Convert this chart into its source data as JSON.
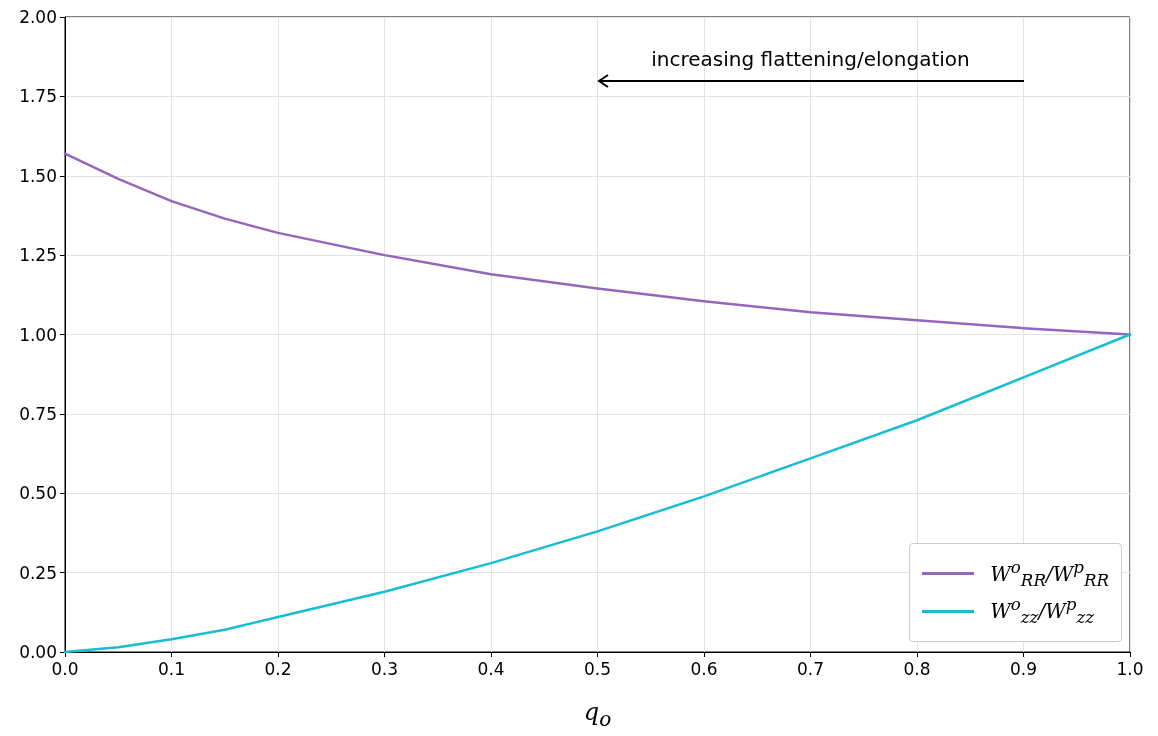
{
  "chart_data": {
    "type": "line",
    "xlabel": "q$_{o}$",
    "x": [
      0,
      0.05,
      0.1,
      0.15,
      0.2,
      0.3,
      0.4,
      0.5,
      0.6,
      0.7,
      0.8,
      0.9,
      1.0
    ],
    "series": [
      {
        "name": "W$^{o}$$_{RR}$/W$^{p}$$_{RR}$",
        "color": "#9467bd",
        "values": [
          1.57,
          1.49,
          1.42,
          1.365,
          1.32,
          1.25,
          1.19,
          1.145,
          1.105,
          1.07,
          1.045,
          1.02,
          1.0
        ]
      },
      {
        "name": "W$^{o}$$_{zz}$/W$^{p}$$_{zz}$",
        "color": "#17becf",
        "values": [
          0,
          0.015,
          0.04,
          0.07,
          0.11,
          0.19,
          0.28,
          0.38,
          0.49,
          0.61,
          0.73,
          0.865,
          1.0
        ]
      }
    ],
    "xlim": [
      0,
      1
    ],
    "xticks": [
      {
        "value": 0,
        "label": "0.0"
      },
      0.1,
      0.2,
      0.3,
      0.4,
      0.5,
      0.6,
      0.7,
      0.8,
      0.9,
      {
        "value": 1,
        "label": "1.0"
      }
    ],
    "ylim": [
      0,
      2
    ],
    "yticks": [
      {
        "value": 0,
        "label": "0.00"
      },
      {
        "value": 0.25,
        "label": "0.25"
      },
      {
        "value": 0.5,
        "label": "0.50"
      },
      {
        "value": 0.75,
        "label": "0.75"
      },
      {
        "value": 1,
        "label": "1.00"
      },
      {
        "value": 1.25,
        "label": "1.25"
      },
      {
        "value": 1.5,
        "label": "1.50"
      },
      {
        "value": 1.75,
        "label": "1.75"
      },
      {
        "value": 2,
        "label": "2.00"
      }
    ],
    "annotations": [
      "increasing flattening/elongation"
    ],
    "grid": true,
    "legend": "bottom right",
    "marker": "none",
    "line_style": "solid"
  }
}
